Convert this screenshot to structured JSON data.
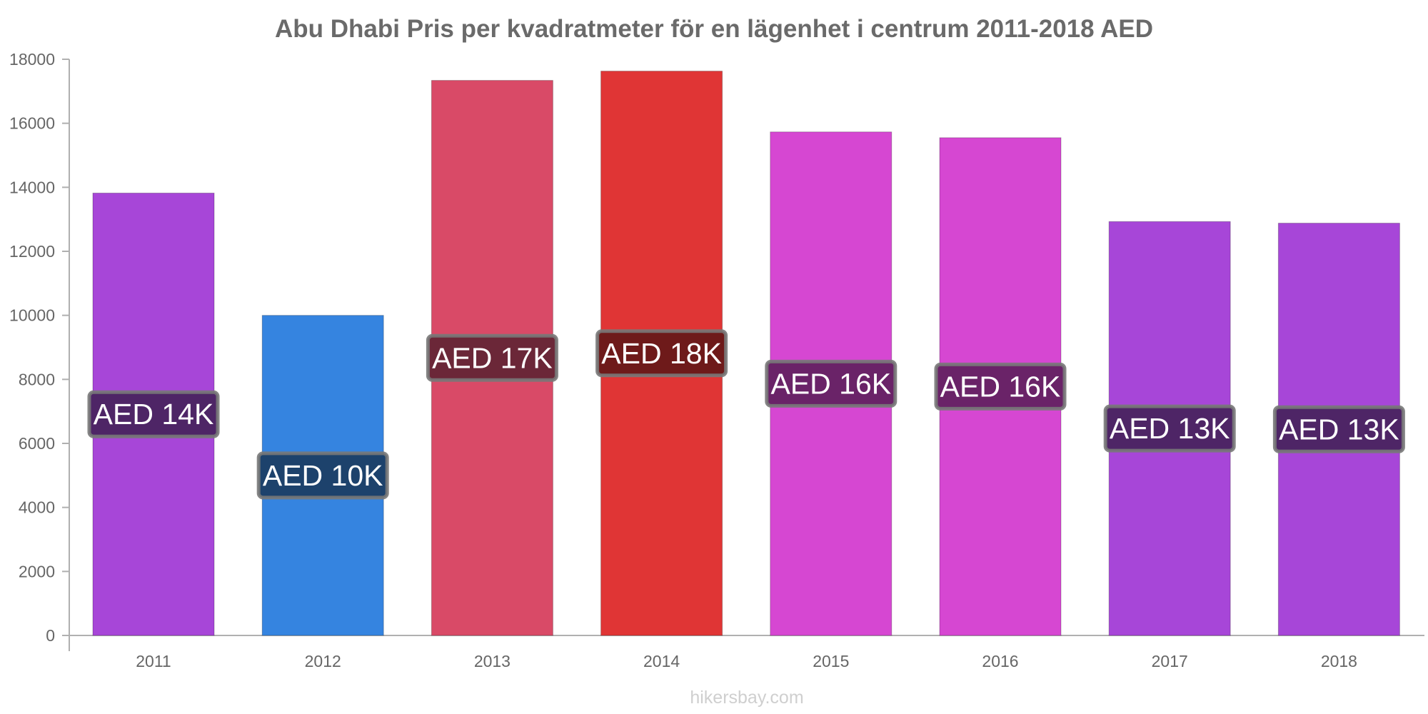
{
  "chart_data": {
    "type": "bar",
    "title": "Abu Dhabi Pris per kvadratmeter för en lägenhet i centrum 2011-2018 AED",
    "xlabel": "",
    "ylabel": "",
    "categories": [
      "2011",
      "2012",
      "2013",
      "2014",
      "2015",
      "2016",
      "2017",
      "2018"
    ],
    "values": [
      13820,
      10000,
      17340,
      17630,
      15730,
      15550,
      12930,
      12880
    ],
    "data_labels": [
      "AED 14K",
      "AED 10K",
      "AED 17K",
      "AED 18K",
      "AED 16K",
      "AED 16K",
      "AED 13K",
      "AED 13K"
    ],
    "bar_colors": [
      "#a746d8",
      "#3584e0",
      "#d94a67",
      "#e03535",
      "#d647d2",
      "#d647d2",
      "#a746d8",
      "#a746d8"
    ],
    "label_box_colors": [
      "#4e2566",
      "#1d426c",
      "#6b2738",
      "#6e1a1a",
      "#6a2368",
      "#6a2368",
      "#4e2566",
      "#4e2566"
    ],
    "ylim": [
      0,
      18000
    ],
    "yticks": [
      0,
      2000,
      4000,
      6000,
      8000,
      10000,
      12000,
      14000,
      16000,
      18000
    ],
    "grid": false,
    "legend": "none"
  },
  "footer": {
    "watermark": "hikersbay.com"
  }
}
